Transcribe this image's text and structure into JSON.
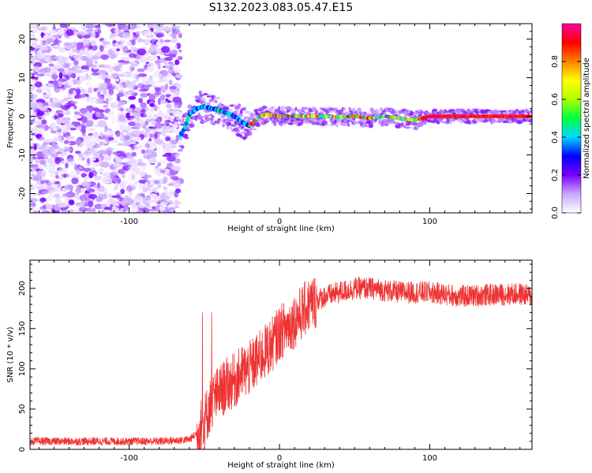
{
  "figure": {
    "title": "S132.2023.083.05.47.E15"
  },
  "chart_data": [
    {
      "type": "heatmap",
      "title": "S132.2023.083.05.47.E15",
      "xlabel": "Height of straight line (km)",
      "ylabel": "Frequency (Hz)",
      "xlim": [
        -166,
        168
      ],
      "ylim": [
        -25,
        24
      ],
      "xticks": [
        -100,
        0,
        100
      ],
      "yticks": [
        -20,
        -10,
        0,
        10,
        20
      ],
      "colorbar": {
        "label": "Normalized spectral amplitude",
        "range": [
          0,
          1
        ],
        "ticks": [
          0.0,
          0.2,
          0.4,
          0.6,
          0.8
        ],
        "colors": [
          "#ffffff",
          "#c9a8ff",
          "#7a00ff",
          "#0000ff",
          "#00d8ff",
          "#00ff40",
          "#b0ff00",
          "#ffff00",
          "#ff8000",
          "#ff0000",
          "#ff00a0"
        ]
      },
      "noise_region_x": [
        -166,
        -66
      ],
      "ridge": {
        "x": [
          -66,
          -63,
          -60,
          -55,
          -50,
          -45,
          -40,
          -35,
          -30,
          -25,
          -20,
          -15,
          -10,
          -5,
          0,
          10,
          20,
          30,
          40,
          50,
          60,
          70,
          80,
          90,
          100,
          110,
          120,
          130,
          140,
          150,
          160,
          168
        ],
        "y": [
          -5,
          -3,
          0.5,
          2,
          2.5,
          2,
          1.5,
          0.8,
          0,
          -1.5,
          -2.5,
          -0.5,
          0.5,
          0.3,
          0,
          0,
          0,
          0,
          -0.2,
          0,
          -0.5,
          0,
          -0.5,
          -1,
          0,
          0,
          0,
          0,
          0,
          0,
          0,
          0
        ]
      }
    },
    {
      "type": "line",
      "xlabel": "Height of straight line (km)",
      "ylabel": "SNR (10 * v/v)",
      "xlim": [
        -166,
        168
      ],
      "ylim": [
        0,
        235
      ],
      "xticks": [
        -100,
        0,
        100
      ],
      "yticks": [
        0,
        50,
        100,
        150,
        200
      ],
      "series": [
        {
          "color": "#ee3333",
          "x": [
            -166,
            -120,
            -80,
            -60,
            -55,
            -50,
            -45,
            -40,
            -35,
            -30,
            -25,
            -20,
            -15,
            -10,
            -5,
            0,
            5,
            10,
            15,
            20,
            25,
            30,
            40,
            50,
            60,
            80,
            100,
            120,
            140,
            160,
            168
          ],
          "y": [
            10,
            10,
            10,
            12,
            20,
            35,
            60,
            70,
            80,
            85,
            95,
            100,
            110,
            120,
            130,
            145,
            152,
            160,
            170,
            180,
            185,
            190,
            195,
            200,
            200,
            195,
            195,
            190,
            192,
            193,
            190
          ]
        }
      ]
    }
  ]
}
